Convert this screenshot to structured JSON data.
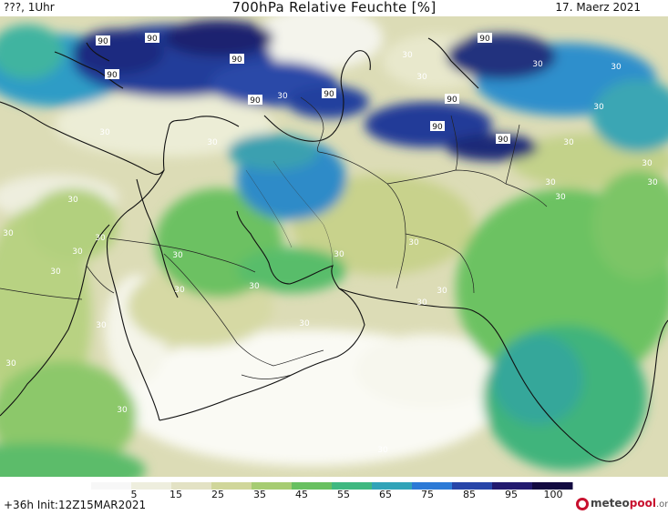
{
  "header": {
    "left": "???, 1Uhr",
    "title": "700hPa Relative Feuchte [%]",
    "date": "17. Maerz 2021"
  },
  "footer": {
    "init": "+36h Init:12Z15MAR2021"
  },
  "brand": {
    "name_a": "meteo",
    "name_b": "pool",
    "suffix": ".org"
  },
  "scale": {
    "ticks": [
      "5",
      "15",
      "25",
      "35",
      "45",
      "55",
      "65",
      "75",
      "85",
      "95",
      "100"
    ],
    "colors": [
      "#f7f7f7",
      "#eeeede",
      "#e3e2c4",
      "#d0d69a",
      "#a6cc72",
      "#68c060",
      "#3fb880",
      "#31a3b8",
      "#2c7ad6",
      "#2745a8",
      "#221a6e",
      "#120a40"
    ]
  },
  "contour_labels": [
    "90",
    "90",
    "90",
    "90",
    "90",
    "90",
    "90",
    "90",
    "90",
    "90",
    "30",
    "30",
    "30",
    "30",
    "30",
    "30",
    "30",
    "30",
    "30",
    "30",
    "30",
    "30",
    "30",
    "30",
    "30",
    "30",
    "30",
    "30",
    "30",
    "30",
    "30",
    "30",
    "30",
    "30",
    "30",
    "30",
    "30",
    "30",
    "30",
    "30"
  ]
}
